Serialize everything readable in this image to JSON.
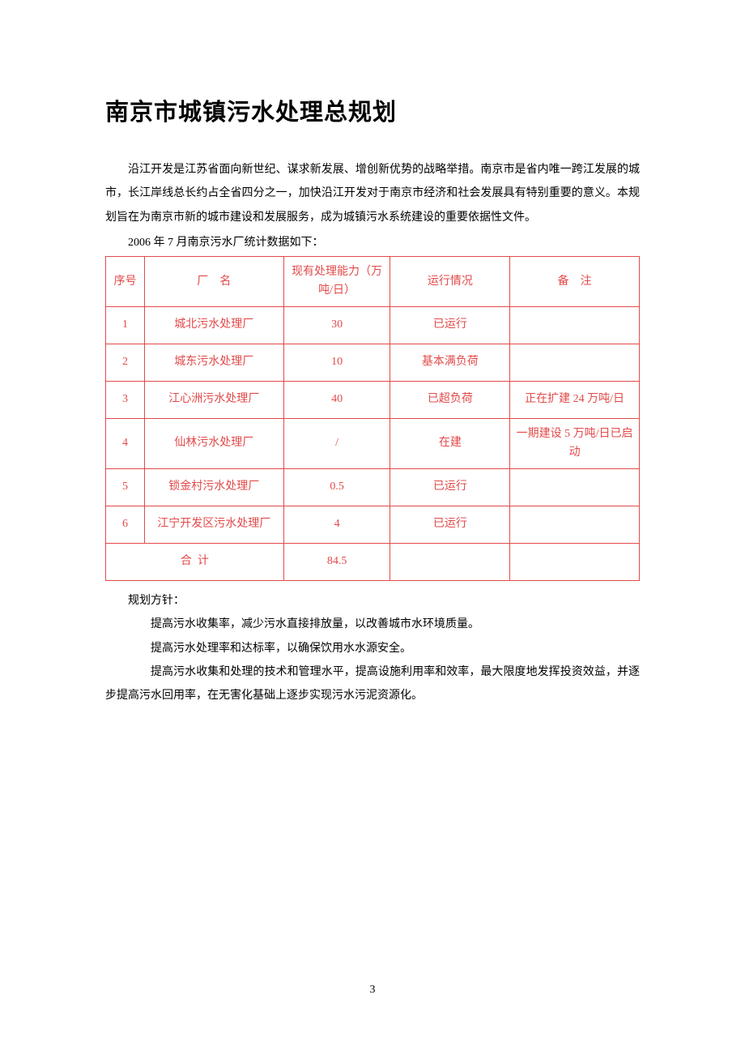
{
  "title": "南京市城镇污水处理总规划",
  "intro": "沿江开发是江苏省面向新世纪、谋求新发展、增创新优势的战略举措。南京市是省内唯一跨江发展的城市，长江岸线总长约占全省四分之一，加快沿江开发对于南京市经济和社会发展具有特别重要的意义。本规划旨在为南京市新的城市建设和发展服务，成为城镇污水系统建设的重要依据性文件。",
  "caption": "2006 年 7 月南京污水厂统计数据如下：",
  "table": {
    "border_color": "#e34a4a",
    "text_color": "#e34a4a",
    "header": {
      "seq": "序号",
      "name_prefix": "厂",
      "name_suffix": "名",
      "capacity": "现有处理能力（万吨/日）",
      "status": "运行情况",
      "note_prefix": "备",
      "note_suffix": "注"
    },
    "rows": [
      {
        "seq": "1",
        "name": "城北污水处理厂",
        "capacity": "30",
        "status": "已运行",
        "note": ""
      },
      {
        "seq": "2",
        "name": "城东污水处理厂",
        "capacity": "10",
        "status": "基本满负荷",
        "note": ""
      },
      {
        "seq": "3",
        "name": "江心洲污水处理厂",
        "capacity": "40",
        "status": "已超负荷",
        "note": "正在扩建 24 万吨/日"
      },
      {
        "seq": "4",
        "name": "仙林污水处理厂",
        "capacity": "/",
        "status": "在建",
        "note": "一期建设 5 万吨/日已启动"
      },
      {
        "seq": "5",
        "name": "锁金村污水处理厂",
        "capacity": "0.5",
        "status": "已运行",
        "note": ""
      },
      {
        "seq": "6",
        "name": "江宁开发区污水处理厂",
        "capacity": "4",
        "status": "已运行",
        "note": ""
      }
    ],
    "total": {
      "label_prefix": "合",
      "label_suffix": "计",
      "value": "84.5"
    }
  },
  "policy_label": "规划方针：",
  "policies": [
    "提高污水收集率，减少污水直接排放量，以改善城市水环境质量。",
    "提高污水处理率和达标率，以确保饮用水水源安全。",
    "提高污水收集和处理的技术和管理水平，提高设施利用率和效率，最大限度地发挥投资效益，并逐步提高污水回用率，在无害化基础上逐步实现污水污泥资源化。"
  ],
  "page_number": "3"
}
